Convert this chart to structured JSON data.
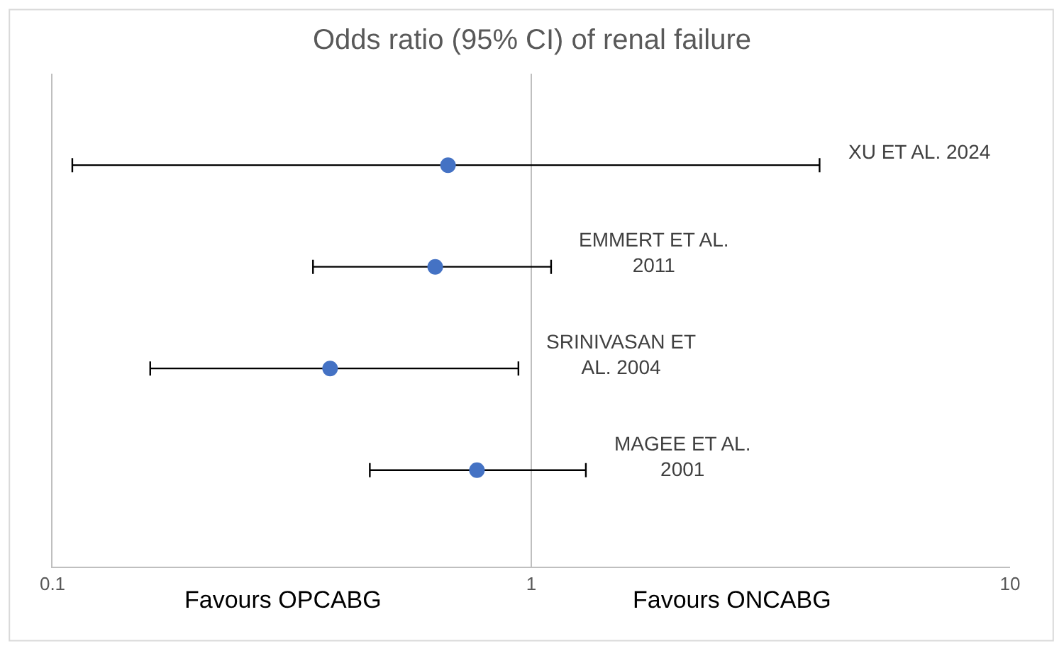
{
  "chart_data": {
    "type": "scatter",
    "orientation": "horizontal",
    "title": "Odds ratio (95% CI) of renal failure",
    "categories": [
      "XU ET AL. 2024",
      "EMMERT ET AL.\n2011",
      "SRINIVASAN ET\nAL. 2004",
      "MAGEE ET AL.\n2001"
    ],
    "values": [
      0.67,
      0.63,
      0.38,
      0.77
    ],
    "errors": [
      [
        0.11,
        4.0
      ],
      [
        0.35,
        1.1
      ],
      [
        0.16,
        0.94
      ],
      [
        0.46,
        1.3
      ]
    ],
    "color": "#4472c4",
    "marker": "circle",
    "log": "x",
    "xlim": [
      0.1,
      10
    ],
    "xticks": [
      0.1,
      1,
      10
    ],
    "tick_labels": "x",
    "grid": false,
    "legend": false,
    "ref_lines": [
      {
        "axis": "x",
        "value": 1,
        "color": "#bfbfbf"
      }
    ],
    "annotations": [
      "Favours OPCABG",
      "Favours ONCABG"
    ]
  }
}
